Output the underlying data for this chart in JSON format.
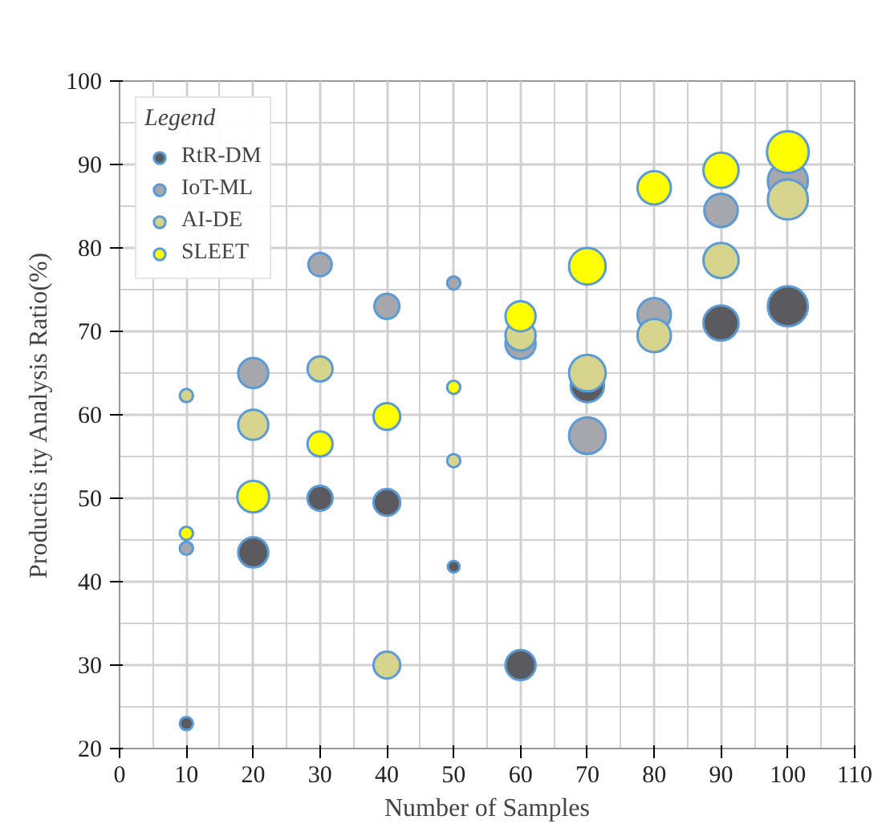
{
  "chart_data": {
    "type": "bubble",
    "xlabel": "Number of Samples",
    "ylabel": "Productis ity Analysis Ratio(%)",
    "legend_title": "Legend",
    "legend": "top left",
    "grid": true,
    "x": [
      10,
      20,
      30,
      40,
      50,
      60,
      70,
      80,
      90,
      100
    ],
    "xlim": [
      0,
      110
    ],
    "xticks": [
      0,
      10,
      20,
      30,
      40,
      50,
      60,
      70,
      80,
      90,
      100,
      110
    ],
    "ylim": [
      20,
      100
    ],
    "yticks": [
      20,
      30,
      40,
      50,
      60,
      70,
      80,
      90,
      100
    ],
    "series": [
      {
        "name": "RtR-DM",
        "color": "#5a5a5f",
        "values": [
          23,
          43.5,
          50,
          49.5,
          41.8,
          30,
          63.5,
          null,
          71,
          73
        ],
        "sizes": [
          0.1,
          0.52,
          0.36,
          0.41,
          0.08,
          0.52,
          0.64,
          null,
          0.71,
          0.92
        ]
      },
      {
        "name": "IoT-ML",
        "color": "#a6a6ad",
        "values": [
          44,
          65,
          78,
          73,
          75.8,
          68.5,
          57.5,
          72,
          84.5,
          88
        ],
        "sizes": [
          0.1,
          0.52,
          0.31,
          0.36,
          0.1,
          0.52,
          0.77,
          0.64,
          0.64,
          0.92
        ]
      },
      {
        "name": "AI-DE",
        "color": "#d6d48c",
        "values": [
          62.3,
          58.8,
          65.5,
          30,
          54.5,
          69.5,
          65,
          69.5,
          78.5,
          85.8
        ],
        "sizes": [
          0.1,
          0.52,
          0.36,
          0.41,
          0.1,
          0.52,
          0.77,
          0.64,
          0.71,
          0.92
        ]
      },
      {
        "name": "SLEET",
        "color": "#ffff00",
        "values": [
          45.8,
          50.2,
          56.5,
          59.8,
          63.3,
          71.8,
          77.8,
          87.2,
          89.3,
          91.5
        ],
        "sizes": [
          0.1,
          0.58,
          0.36,
          0.41,
          0.1,
          0.52,
          0.77,
          0.64,
          0.71,
          1
        ]
      }
    ]
  }
}
